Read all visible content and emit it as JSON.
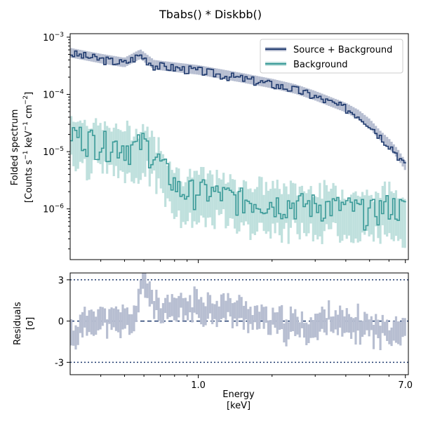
{
  "chart_data": [
    {
      "type": "line",
      "title": "Tbabs() * Diskbb()",
      "ylabel_line1": "Folded spectrum",
      "ylabel_line2_parts": [
        "[Counts s",
        "−1",
        " keV",
        "−1",
        " cm",
        "−2",
        "]"
      ],
      "yscale": "log",
      "xscale": "log",
      "xlim": [
        0.3,
        7.2
      ],
      "ylim": [
        1.3e-07,
        0.00115
      ],
      "ytick_labels": [
        {
          "base": "10",
          "exp": "−3",
          "value": 0.001
        },
        {
          "base": "10",
          "exp": "−4",
          "value": 0.0001
        },
        {
          "base": "10",
          "exp": "−5",
          "value": 1e-05
        },
        {
          "base": "10",
          "exp": "−6",
          "value": 1e-06
        }
      ],
      "legend_placement": "top-right",
      "colors": {
        "source": "#1f3a6e",
        "source_model": "#b7bed1",
        "background": "#3a9a98",
        "background_band": "#bfe0dd"
      },
      "series": [
        {
          "name": "Source + Background",
          "shape": "power-law spectrum with exponential cutoff",
          "start_value": 0.00052,
          "end_value": 5.5e-06,
          "points": [
            [
              0.3,
              0.00052
            ],
            [
              0.4,
              0.00041
            ],
            [
              0.5,
              0.00035
            ],
            [
              0.58,
              0.00049
            ],
            [
              0.66,
              0.00032
            ],
            [
              0.8,
              0.00029
            ],
            [
              1.0,
              0.00026
            ],
            [
              1.5,
              0.00019
            ],
            [
              2.0,
              0.00015
            ],
            [
              2.5,
              0.00012
            ],
            [
              3.0,
              9.2e-05
            ],
            [
              3.5,
              7.1e-05
            ],
            [
              4.0,
              5.7e-05
            ],
            [
              4.5,
              4.3e-05
            ],
            [
              5.0,
              3e-05
            ],
            [
              5.5,
              1.9e-05
            ],
            [
              6.0,
              1.35e-05
            ],
            [
              6.5,
              9e-06
            ],
            [
              7.0,
              5.5e-06
            ]
          ]
        },
        {
          "name": "Background",
          "shape": "flat noisy background",
          "start_value": 2.2e-05,
          "end_value": 1e-06,
          "points": [
            [
              0.3,
              2.2e-05
            ],
            [
              0.4,
              1.5e-05
            ],
            [
              0.55,
              1.2e-05
            ],
            [
              0.6,
              1.5e-05
            ],
            [
              0.7,
              6.5e-06
            ],
            [
              0.85,
              2e-06
            ],
            [
              1.0,
              2.2e-06
            ],
            [
              1.5,
              1.5e-06
            ],
            [
              2.0,
              1.3e-06
            ],
            [
              3.0,
              1.2e-06
            ],
            [
              4.0,
              1.1e-06
            ],
            [
              5.0,
              9e-07
            ],
            [
              6.0,
              1.2e-06
            ],
            [
              7.0,
              1e-06
            ]
          ]
        }
      ]
    },
    {
      "type": "scatter",
      "xlabel": "Energy",
      "xlabel_unit": "[keV]",
      "ylabel_line1": "Residuals",
      "ylabel_line2": "[σ]",
      "xscale": "log",
      "xlim": [
        0.3,
        7.2
      ],
      "ylim": [
        -3.9,
        3.5
      ],
      "xtick_labels": [
        {
          "label": "1.0",
          "value": 1.0
        },
        {
          "label": "7.0",
          "value": 7.0
        }
      ],
      "ytick_labels": [
        {
          "label": "3",
          "value": 3
        },
        {
          "label": "0",
          "value": 0
        },
        {
          "label": "-3",
          "value": -3
        }
      ],
      "reference_lines": [
        {
          "value": 3,
          "style": "dotted"
        },
        {
          "value": 0,
          "style": "dashed"
        },
        {
          "value": -3,
          "style": "dotted"
        }
      ],
      "colors": {
        "marker": "#b7bed1",
        "reference": "#1f3a6e"
      },
      "residual_trend": "scattered within ±2σ with one outlier near 3σ at 0.6 keV",
      "points": [
        [
          0.31,
          -1.0
        ],
        [
          0.37,
          0.3
        ],
        [
          0.45,
          -0.2
        ],
        [
          0.55,
          0.2
        ],
        [
          0.6,
          3.0
        ],
        [
          0.7,
          0.4
        ],
        [
          0.85,
          1.0
        ],
        [
          1.0,
          1.0
        ],
        [
          1.3,
          0.9
        ],
        [
          1.6,
          0.5
        ],
        [
          2.0,
          -0.2
        ],
        [
          2.5,
          -0.4
        ],
        [
          3.0,
          -0.5
        ],
        [
          3.5,
          0.4
        ],
        [
          4.0,
          -0.5
        ],
        [
          4.5,
          -0.3
        ],
        [
          5.0,
          -0.4
        ],
        [
          5.5,
          -0.8
        ],
        [
          6.0,
          -0.6
        ],
        [
          6.5,
          -0.5
        ],
        [
          7.0,
          -0.4
        ]
      ]
    }
  ]
}
